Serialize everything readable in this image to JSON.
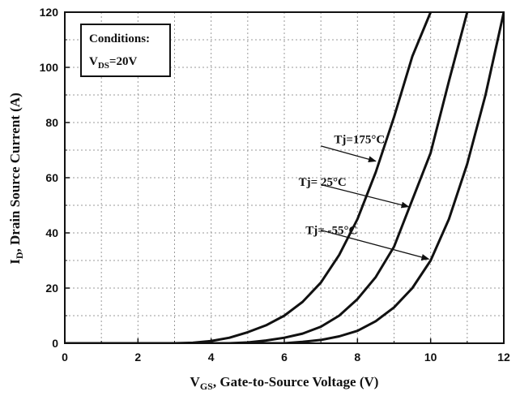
{
  "chart_data": {
    "type": "line",
    "xlabel_main": "V",
    "xlabel_sub": "GS",
    "xlabel_rest": ", Gate-to-Source Voltage (V)",
    "ylabel_main": "I",
    "ylabel_sub": "D",
    "ylabel_rest": ", Drain Source Current (A)",
    "xlim": [
      0,
      12
    ],
    "ylim": [
      0,
      120
    ],
    "xticks": [
      "0",
      "2",
      "4",
      "6",
      "8",
      "10",
      "12"
    ],
    "yticks": [
      "0",
      "20",
      "40",
      "60",
      "80",
      "100",
      "120"
    ],
    "grid": true,
    "conditions": {
      "title": "Conditions:",
      "line_main": "V",
      "line_sub": "DS",
      "line_rest": "=20V"
    },
    "series": [
      {
        "name": "Tj=175°C",
        "x": [
          3.0,
          3.5,
          4.0,
          4.5,
          5.0,
          5.5,
          6.0,
          6.5,
          7.0,
          7.5,
          8.0,
          8.5,
          9.0,
          9.5,
          10.0
        ],
        "y": [
          0,
          0.2,
          0.8,
          2,
          4,
          6.5,
          10,
          15,
          22,
          32,
          45,
          62,
          82,
          104,
          120
        ]
      },
      {
        "name": "Tj= 25°C",
        "x": [
          4.5,
          5.0,
          5.5,
          6.0,
          6.5,
          7.0,
          7.5,
          8.0,
          8.5,
          9.0,
          9.5,
          10.0,
          10.5,
          11.0
        ],
        "y": [
          0,
          0.3,
          1,
          2,
          3.5,
          6,
          10,
          16,
          24,
          35,
          52,
          69,
          95,
          120
        ]
      },
      {
        "name": "Tj= -55°C",
        "x": [
          6.0,
          6.5,
          7.0,
          7.5,
          8.0,
          8.5,
          9.0,
          9.5,
          10.0,
          10.5,
          11.0,
          11.5,
          12.0
        ],
        "y": [
          0,
          0.5,
          1.2,
          2.5,
          4.5,
          8,
          13,
          20,
          30,
          45,
          65,
          90,
          120
        ]
      }
    ],
    "annotations": [
      {
        "label": "Tj=175°C",
        "text_at": [
          8.75,
          72.5
        ],
        "arrow_from": [
          7.0,
          71.5
        ],
        "arrow_to": [
          8.5,
          66.0
        ]
      },
      {
        "label": "Tj= 25°C",
        "text_at": [
          7.7,
          57.0
        ],
        "arrow_from": [
          7.0,
          57.5
        ],
        "arrow_to": [
          9.4,
          49.5
        ]
      },
      {
        "label": "Tj= -55°C",
        "text_at": [
          8.0,
          39.5
        ],
        "arrow_from": [
          7.0,
          41.0
        ],
        "arrow_to": [
          9.95,
          30.5
        ]
      }
    ]
  }
}
